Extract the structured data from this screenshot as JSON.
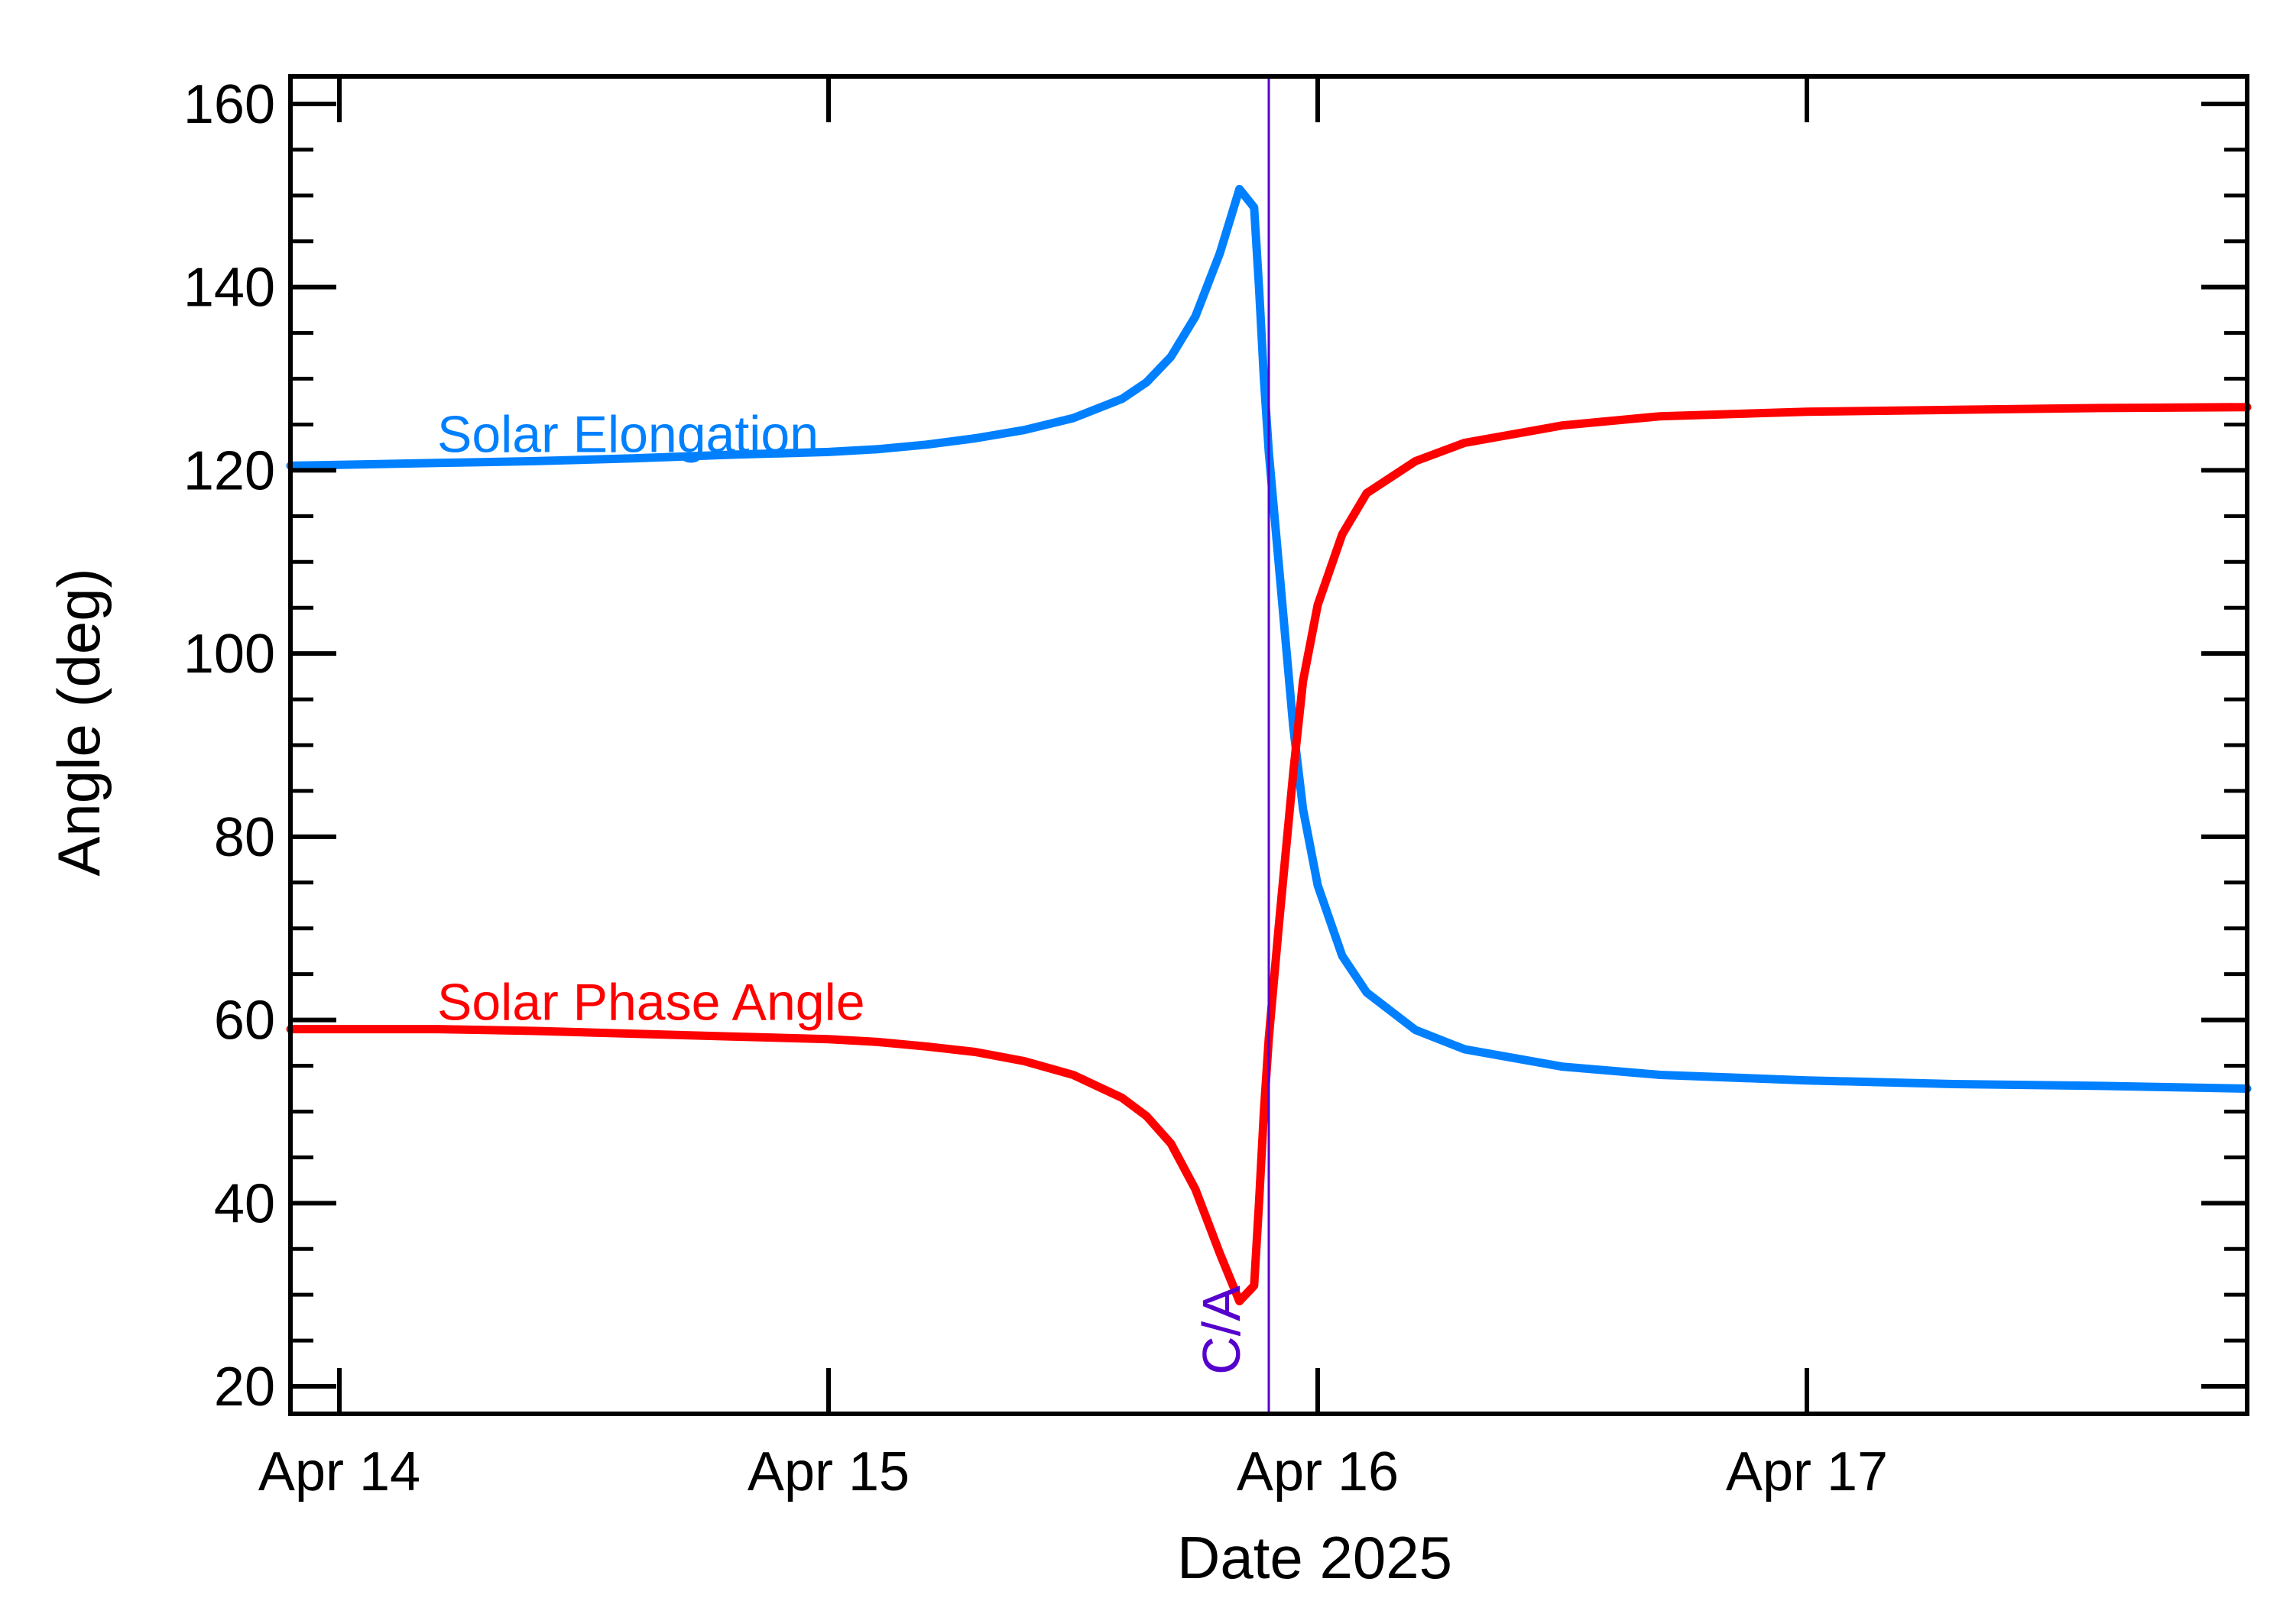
{
  "chart_data": {
    "type": "line",
    "xlabel": "Date 2025",
    "ylabel": "Angle (deg)",
    "xlim": [
      -0.1,
      3.9
    ],
    "ylim": [
      17,
      163
    ],
    "y_ticks": [
      20,
      40,
      60,
      80,
      100,
      120,
      140,
      160
    ],
    "y_minor_step": 5,
    "x_ticks": [
      {
        "value": 0,
        "label": "Apr 14"
      },
      {
        "value": 1,
        "label": "Apr 15"
      },
      {
        "value": 2,
        "label": "Apr 16"
      },
      {
        "value": 3,
        "label": "Apr 17"
      }
    ],
    "grid": false,
    "closest_approach": {
      "x": 1.9,
      "label": "C/A",
      "color": "#5500cc"
    },
    "series": [
      {
        "name": "Solar Elongation",
        "color": "#0080ff",
        "label_at": {
          "x": 0.2,
          "y": 122
        },
        "points": [
          [
            -0.1,
            120.5
          ],
          [
            0.0,
            120.6
          ],
          [
            0.2,
            120.8
          ],
          [
            0.4,
            121.0
          ],
          [
            0.6,
            121.3
          ],
          [
            0.8,
            121.7
          ],
          [
            1.0,
            122.0
          ],
          [
            1.1,
            122.3
          ],
          [
            1.2,
            122.8
          ],
          [
            1.3,
            123.5
          ],
          [
            1.4,
            124.4
          ],
          [
            1.5,
            125.7
          ],
          [
            1.6,
            127.8
          ],
          [
            1.65,
            129.6
          ],
          [
            1.7,
            132.4
          ],
          [
            1.75,
            136.8
          ],
          [
            1.8,
            143.7
          ],
          [
            1.84,
            150.7
          ],
          [
            1.87,
            148.7
          ],
          [
            1.88,
            140.0
          ],
          [
            1.89,
            130.0
          ],
          [
            1.9,
            122.0
          ],
          [
            1.92,
            110.0
          ],
          [
            1.95,
            92.0
          ],
          [
            1.97,
            83.0
          ],
          [
            2.0,
            74.7
          ],
          [
            2.05,
            67.0
          ],
          [
            2.1,
            63.0
          ],
          [
            2.2,
            58.9
          ],
          [
            2.3,
            56.8
          ],
          [
            2.5,
            54.9
          ],
          [
            2.7,
            54.0
          ],
          [
            3.0,
            53.4
          ],
          [
            3.3,
            53.0
          ],
          [
            3.6,
            52.8
          ],
          [
            3.9,
            52.5
          ]
        ]
      },
      {
        "name": "Solar Phase Angle",
        "color": "#ff0000",
        "label_at": {
          "x": 0.2,
          "y": 60
        },
        "points": [
          [
            -0.1,
            59.0
          ],
          [
            0.0,
            59.0
          ],
          [
            0.2,
            59.0
          ],
          [
            0.4,
            58.8
          ],
          [
            0.6,
            58.5
          ],
          [
            0.8,
            58.2
          ],
          [
            1.0,
            57.9
          ],
          [
            1.1,
            57.6
          ],
          [
            1.2,
            57.1
          ],
          [
            1.3,
            56.5
          ],
          [
            1.4,
            55.5
          ],
          [
            1.5,
            54.0
          ],
          [
            1.6,
            51.5
          ],
          [
            1.65,
            49.5
          ],
          [
            1.7,
            46.5
          ],
          [
            1.75,
            41.5
          ],
          [
            1.8,
            34.5
          ],
          [
            1.84,
            29.3
          ],
          [
            1.87,
            31.0
          ],
          [
            1.88,
            40.0
          ],
          [
            1.89,
            50.0
          ],
          [
            1.9,
            58.0
          ],
          [
            1.92,
            70.0
          ],
          [
            1.95,
            87.0
          ],
          [
            1.97,
            97.0
          ],
          [
            2.0,
            105.3
          ],
          [
            2.05,
            113.0
          ],
          [
            2.1,
            117.5
          ],
          [
            2.2,
            121.0
          ],
          [
            2.3,
            123.0
          ],
          [
            2.5,
            124.9
          ],
          [
            2.7,
            125.9
          ],
          [
            3.0,
            126.4
          ],
          [
            3.3,
            126.6
          ],
          [
            3.6,
            126.8
          ],
          [
            3.9,
            126.9
          ]
        ]
      }
    ]
  }
}
